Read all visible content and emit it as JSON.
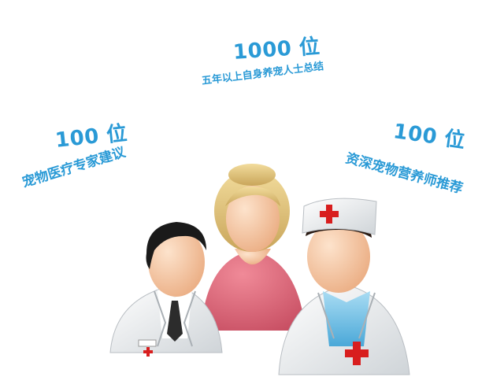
{
  "groups": {
    "center": {
      "count": "1000 位",
      "desc": "五年以上自身养宠人士总结"
    },
    "left": {
      "count": "100 位",
      "desc": "宠物医疗专家建议"
    },
    "right": {
      "count": "100 位",
      "desc": "资深宠物营养师推荐"
    }
  },
  "colors": {
    "text": "#2a9ad6",
    "skin": "#f6c4a0",
    "woman_shirt": "#e06b7c",
    "woman_hair": "#e9cf88",
    "coat": "#f3f3f3",
    "cross": "#d81e1e",
    "doctor_hair": "#1a1a1a",
    "nurse_scrub": "#7ec8ea"
  },
  "icons": [
    "male-doctor-icon",
    "woman-icon",
    "nurse-icon",
    "red-cross-icon"
  ]
}
